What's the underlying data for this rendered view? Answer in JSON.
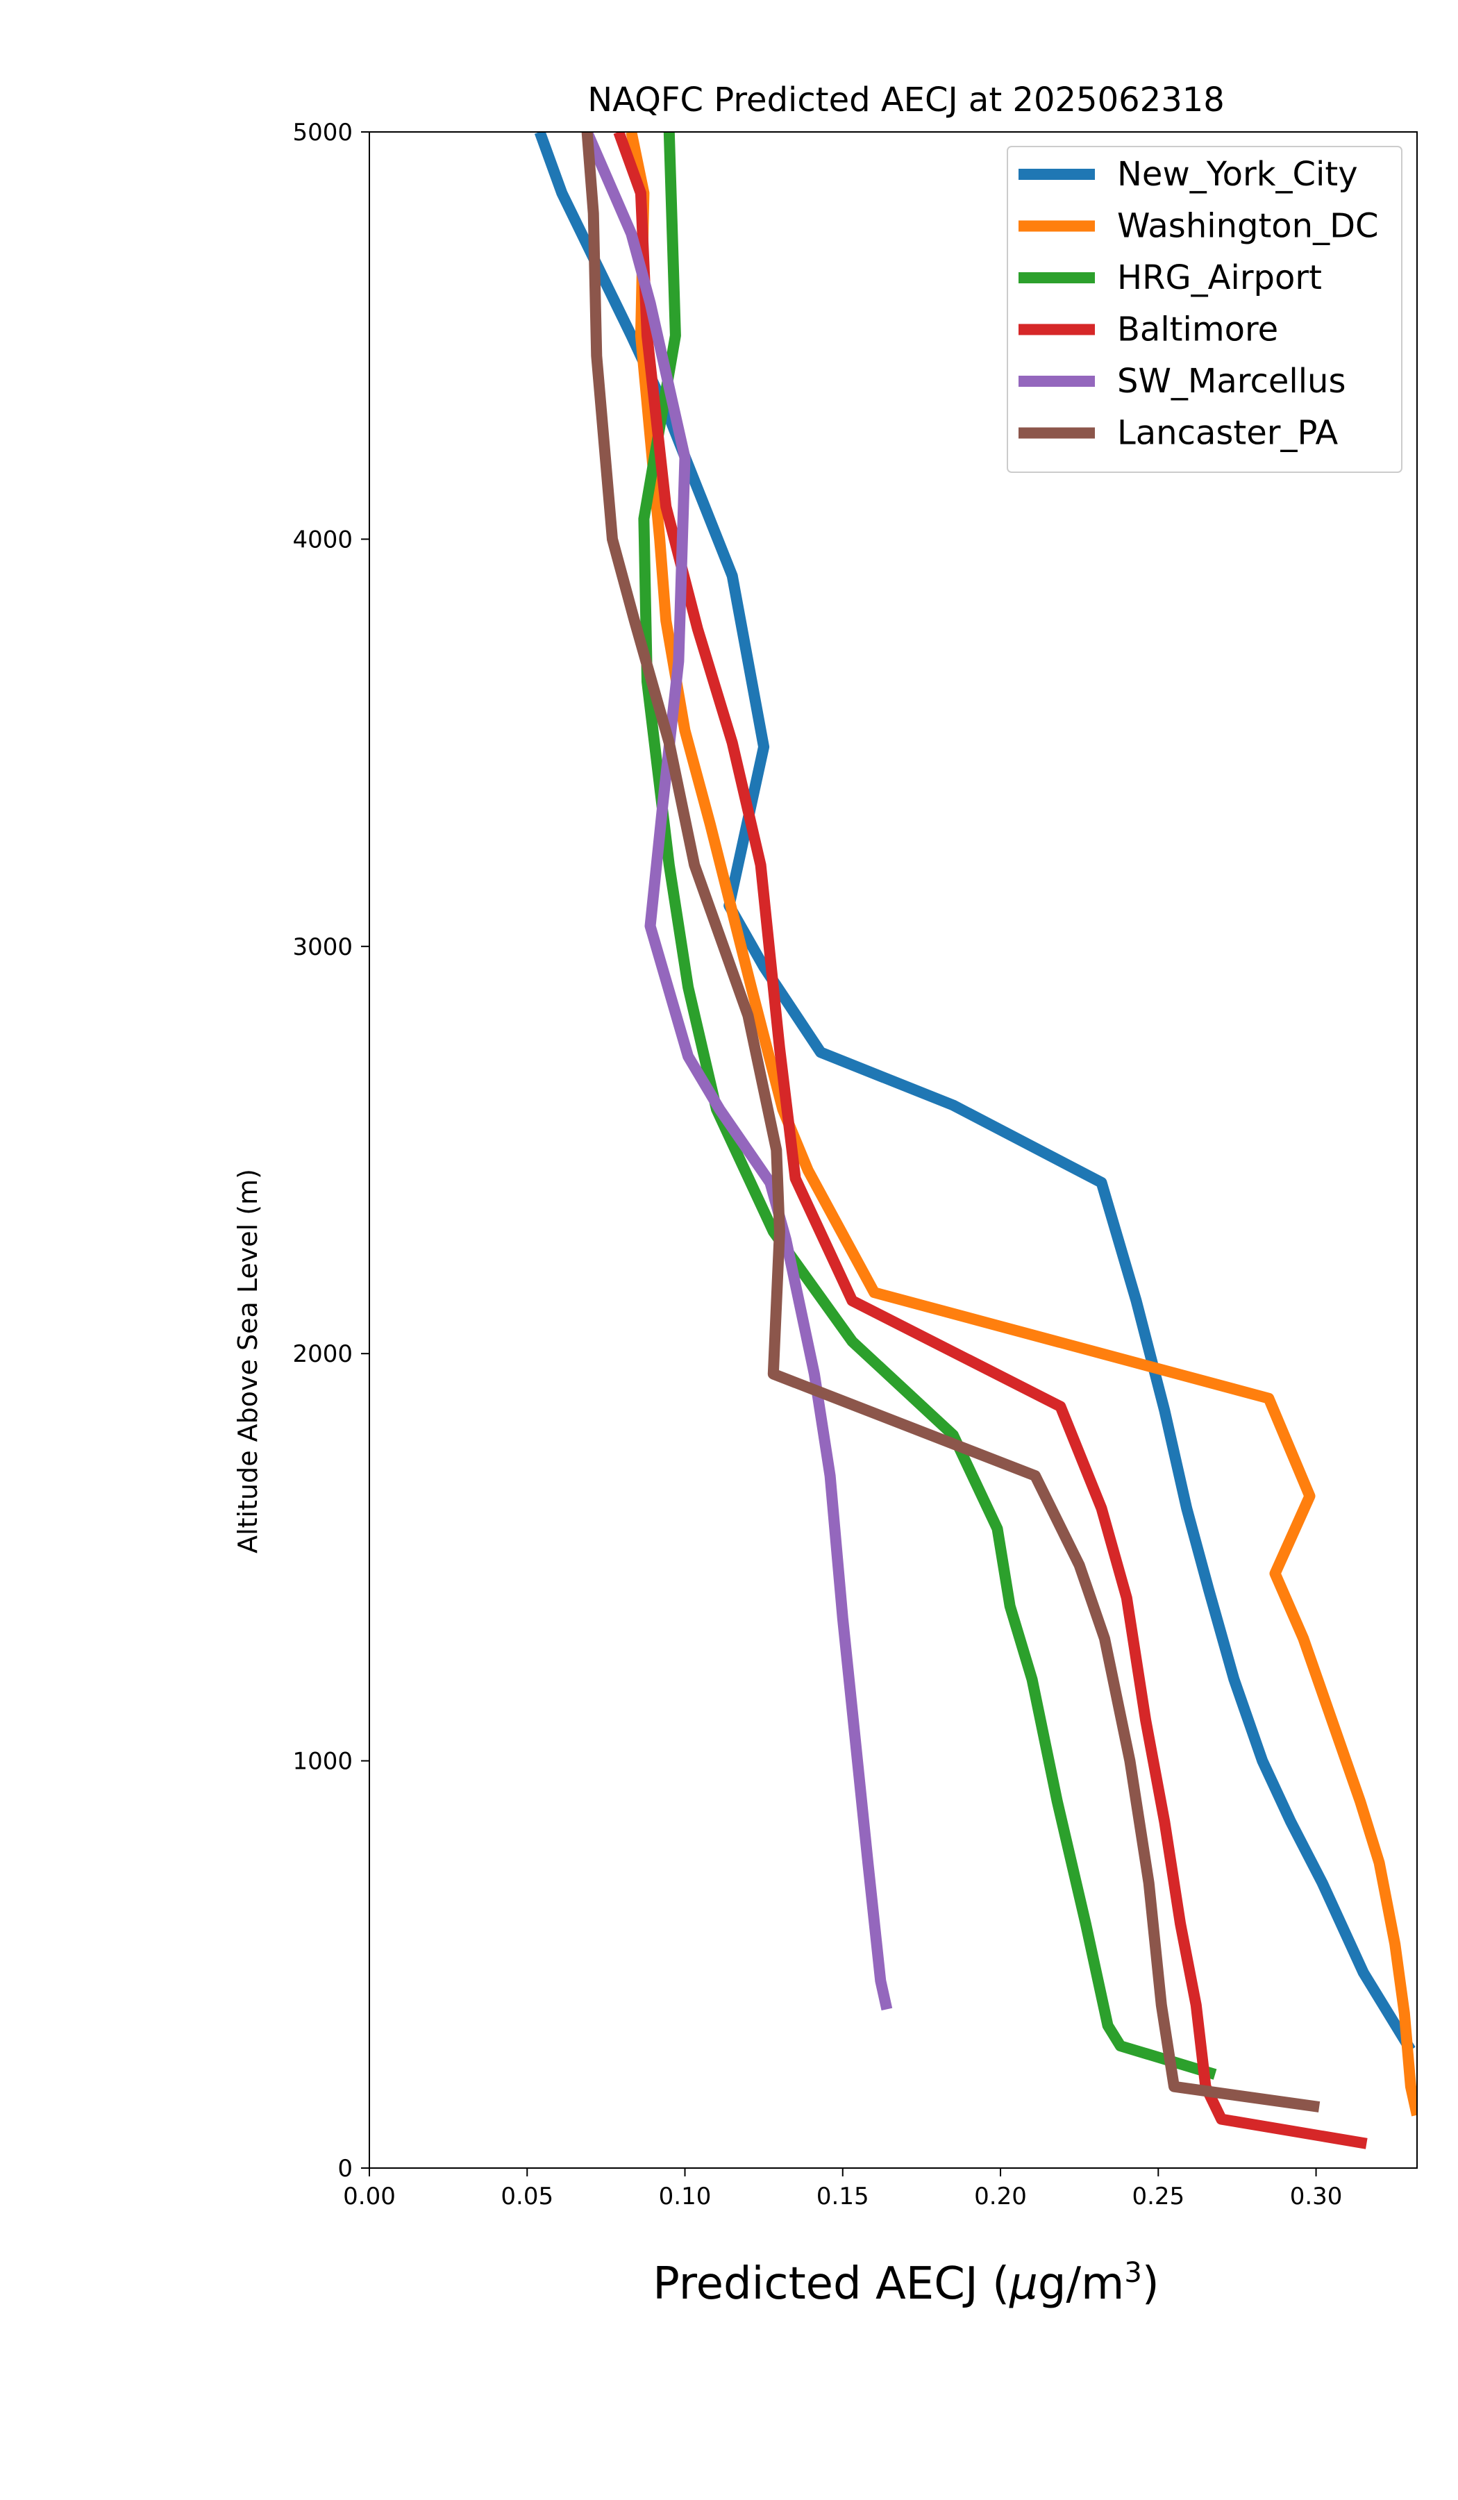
{
  "chart_data": {
    "type": "line",
    "title": "NAQFC Predicted AECJ at 2025062318",
    "xlabel": "Predicted AECJ (μg/m³)",
    "xlabel_parts": {
      "prefix": "Predicted AECJ (",
      "mu": "μ",
      "unit": "g/m",
      "exp": "3",
      "suffix": ")"
    },
    "ylabel": "Altitude Above Sea Level (m)",
    "xlim": [
      0.0,
      0.332
    ],
    "ylim": [
      0,
      5000
    ],
    "x_ticks": [
      "0.00",
      "0.05",
      "0.10",
      "0.15",
      "0.20",
      "0.25",
      "0.30"
    ],
    "y_ticks": [
      "0",
      "1000",
      "2000",
      "3000",
      "4000",
      "5000"
    ],
    "legend_position": "top-right",
    "grid": false,
    "series": [
      {
        "name": "New_York_City",
        "color": "#1f77b4",
        "points": [
          [
            0.33,
            290
          ],
          [
            0.315,
            480
          ],
          [
            0.302,
            700
          ],
          [
            0.292,
            850
          ],
          [
            0.283,
            1000
          ],
          [
            0.274,
            1200
          ],
          [
            0.266,
            1420
          ],
          [
            0.259,
            1620
          ],
          [
            0.252,
            1860
          ],
          [
            0.243,
            2130
          ],
          [
            0.232,
            2420
          ],
          [
            0.185,
            2610
          ],
          [
            0.143,
            2740
          ],
          [
            0.125,
            2950
          ],
          [
            0.114,
            3100
          ],
          [
            0.125,
            3490
          ],
          [
            0.115,
            3910
          ],
          [
            0.095,
            4300
          ],
          [
            0.083,
            4500
          ],
          [
            0.061,
            4850
          ],
          [
            0.054,
            5000
          ]
        ]
      },
      {
        "name": "Washington_DC",
        "color": "#ff7f0e",
        "points": [
          [
            0.332,
            130
          ],
          [
            0.33,
            200
          ],
          [
            0.328,
            380
          ],
          [
            0.325,
            550
          ],
          [
            0.32,
            750
          ],
          [
            0.314,
            900
          ],
          [
            0.305,
            1100
          ],
          [
            0.296,
            1300
          ],
          [
            0.287,
            1460
          ],
          [
            0.298,
            1650
          ],
          [
            0.285,
            1890
          ],
          [
            0.16,
            2150
          ],
          [
            0.139,
            2450
          ],
          [
            0.131,
            2600
          ],
          [
            0.121,
            2900
          ],
          [
            0.108,
            3300
          ],
          [
            0.1,
            3530
          ],
          [
            0.094,
            3800
          ],
          [
            0.092,
            4000
          ],
          [
            0.086,
            4500
          ],
          [
            0.087,
            4850
          ],
          [
            0.083,
            5000
          ]
        ]
      },
      {
        "name": "HRG_Airport",
        "color": "#2ca02c",
        "points": [
          [
            0.268,
            230
          ],
          [
            0.238,
            300
          ],
          [
            0.234,
            350
          ],
          [
            0.227,
            600
          ],
          [
            0.218,
            900
          ],
          [
            0.21,
            1200
          ],
          [
            0.203,
            1380
          ],
          [
            0.199,
            1570
          ],
          [
            0.185,
            1800
          ],
          [
            0.153,
            2030
          ],
          [
            0.128,
            2300
          ],
          [
            0.11,
            2600
          ],
          [
            0.101,
            2900
          ],
          [
            0.095,
            3200
          ],
          [
            0.088,
            3650
          ],
          [
            0.087,
            4050
          ],
          [
            0.097,
            4500
          ],
          [
            0.095,
            5000
          ]
        ]
      },
      {
        "name": "Baltimore",
        "color": "#d62728",
        "points": [
          [
            0.316,
            60
          ],
          [
            0.27,
            120
          ],
          [
            0.265,
            200
          ],
          [
            0.262,
            400
          ],
          [
            0.257,
            600
          ],
          [
            0.252,
            850
          ],
          [
            0.246,
            1100
          ],
          [
            0.24,
            1400
          ],
          [
            0.232,
            1620
          ],
          [
            0.219,
            1870
          ],
          [
            0.153,
            2130
          ],
          [
            0.135,
            2430
          ],
          [
            0.13,
            2750
          ],
          [
            0.124,
            3200
          ],
          [
            0.115,
            3500
          ],
          [
            0.104,
            3780
          ],
          [
            0.094,
            4080
          ],
          [
            0.088,
            4500
          ],
          [
            0.086,
            4850
          ],
          [
            0.079,
            5000
          ]
        ]
      },
      {
        "name": "SW_Marcellus",
        "color": "#9467bd",
        "points": [
          [
            0.164,
            390
          ],
          [
            0.162,
            460
          ],
          [
            0.158,
            750
          ],
          [
            0.154,
            1050
          ],
          [
            0.15,
            1350
          ],
          [
            0.146,
            1700
          ],
          [
            0.141,
            1950
          ],
          [
            0.132,
            2280
          ],
          [
            0.127,
            2420
          ],
          [
            0.111,
            2600
          ],
          [
            0.101,
            2730
          ],
          [
            0.089,
            3050
          ],
          [
            0.093,
            3350
          ],
          [
            0.098,
            3700
          ],
          [
            0.1,
            4200
          ],
          [
            0.089,
            4580
          ],
          [
            0.083,
            4750
          ],
          [
            0.069,
            5000
          ]
        ]
      },
      {
        "name": "Lancaster_PA",
        "color": "#8c564b",
        "points": [
          [
            0.301,
            150
          ],
          [
            0.255,
            200
          ],
          [
            0.251,
            400
          ],
          [
            0.247,
            700
          ],
          [
            0.241,
            1000
          ],
          [
            0.233,
            1300
          ],
          [
            0.225,
            1480
          ],
          [
            0.211,
            1700
          ],
          [
            0.128,
            1950
          ],
          [
            0.13,
            2300
          ],
          [
            0.129,
            2500
          ],
          [
            0.12,
            2830
          ],
          [
            0.103,
            3200
          ],
          [
            0.095,
            3500
          ],
          [
            0.084,
            3800
          ],
          [
            0.077,
            4000
          ],
          [
            0.072,
            4450
          ],
          [
            0.071,
            4800
          ],
          [
            0.069,
            5000
          ]
        ]
      }
    ]
  }
}
